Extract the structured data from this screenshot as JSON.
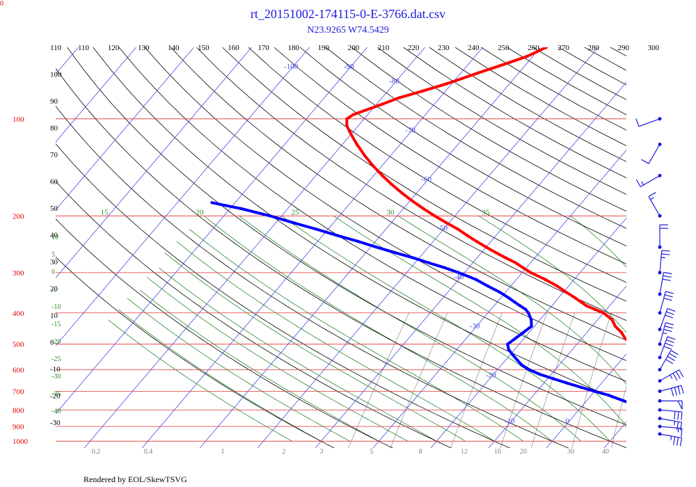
{
  "corner_label": "0",
  "footer": "Rendered by EOL/SkewTSVG",
  "colors": {
    "temperature": "#ff0000",
    "dewpoint": "#0000ff",
    "isobar": "#e03030",
    "isotherm": "#4a4ae6",
    "dry_adiabat": "#000000",
    "moist_adiabat": "#2a8a2a",
    "mixing_ratio": "#9a9a9a",
    "wind_barb": "#1a1adb"
  },
  "chart_data": {
    "type": "skew-t",
    "title": "rt_20151002-174115-0-E-3766.dat.csv",
    "subtitle": "N23.9265 W74.5429",
    "pressure_levels": [
      100,
      200,
      300,
      400,
      500,
      600,
      700,
      800,
      900,
      1000
    ],
    "isotherm_labels": [
      -100,
      -90,
      -80,
      -70,
      -60,
      -50,
      -40,
      -30,
      -20,
      -10,
      0,
      10,
      20,
      30,
      40
    ],
    "theta_top_labels": [
      110,
      120,
      130,
      140,
      150,
      160,
      170,
      180,
      190,
      200,
      210,
      220,
      230,
      240,
      250,
      260,
      270,
      280,
      290,
      300
    ],
    "theta_left_labels": [
      110,
      100,
      90,
      80,
      70,
      60,
      50,
      40,
      30,
      20,
      10,
      0,
      -10,
      -20,
      -30,
      -40
    ],
    "theta_e_labels": [
      15,
      20,
      25,
      30,
      35
    ],
    "moist_left_labels": [
      10,
      5,
      0,
      -5,
      -10,
      -15,
      -20,
      -25,
      -30,
      -35,
      -40
    ],
    "mixing_ratio_labels": [
      "0.2",
      "0.4",
      "1",
      "2",
      "3",
      "5",
      "8",
      "12",
      "16",
      "20",
      "30",
      "40"
    ],
    "series": [
      {
        "name": "temperature",
        "points": [
          [
            940,
            24.5
          ],
          [
            925,
            23.5
          ],
          [
            900,
            22.0
          ],
          [
            870,
            20.0
          ],
          [
            850,
            18.5
          ],
          [
            820,
            17.0
          ],
          [
            800,
            15.5
          ],
          [
            775,
            14.0
          ],
          [
            750,
            12.5
          ],
          [
            720,
            11.0
          ],
          [
            700,
            9.5
          ],
          [
            680,
            8.5
          ],
          [
            660,
            7.8
          ],
          [
            640,
            7.0
          ],
          [
            620,
            6.0
          ],
          [
            600,
            5.2
          ],
          [
            580,
            4.5
          ],
          [
            560,
            4.0
          ],
          [
            540,
            3.0
          ],
          [
            520,
            1.5
          ],
          [
            500,
            -0.5
          ],
          [
            480,
            -2.5
          ],
          [
            460,
            -4.0
          ],
          [
            440,
            -6.0
          ],
          [
            420,
            -7.5
          ],
          [
            400,
            -10.0
          ],
          [
            390,
            -12.0
          ],
          [
            380,
            -14.0
          ],
          [
            370,
            -15.5
          ],
          [
            360,
            -17.0
          ],
          [
            345,
            -19.5
          ],
          [
            330,
            -22.0
          ],
          [
            315,
            -25.0
          ],
          [
            300,
            -28.5
          ],
          [
            290,
            -30.5
          ],
          [
            280,
            -32.5
          ],
          [
            270,
            -35.0
          ],
          [
            260,
            -37.5
          ],
          [
            250,
            -40.0
          ],
          [
            240,
            -42.5
          ],
          [
            230,
            -45.0
          ],
          [
            220,
            -47.5
          ],
          [
            210,
            -50.5
          ],
          [
            200,
            -53.5
          ],
          [
            190,
            -56.5
          ],
          [
            180,
            -59.5
          ],
          [
            170,
            -62.5
          ],
          [
            160,
            -65.5
          ],
          [
            150,
            -68.5
          ],
          [
            140,
            -71.5
          ],
          [
            130,
            -74.5
          ],
          [
            120,
            -77.5
          ],
          [
            110,
            -80.5
          ],
          [
            105,
            -82.0
          ],
          [
            100,
            -83.0
          ],
          [
            97,
            -82.5
          ],
          [
            94,
            -81.0
          ],
          [
            90,
            -79.0
          ],
          [
            86,
            -77.0
          ],
          [
            82,
            -74.0
          ],
          [
            78,
            -71.0
          ],
          [
            75,
            -69.0
          ],
          [
            72,
            -67.0
          ],
          [
            70,
            -65.5
          ],
          [
            68,
            -64.0
          ],
          [
            66,
            -62.5
          ],
          [
            64,
            -61.0
          ],
          [
            62,
            -60.0
          ],
          [
            60,
            -59.0
          ]
        ]
      },
      {
        "name": "dewpoint",
        "points": [
          [
            940,
            23.0
          ],
          [
            925,
            22.0
          ],
          [
            900,
            20.5
          ],
          [
            870,
            18.5
          ],
          [
            850,
            17.0
          ],
          [
            820,
            14.5
          ],
          [
            800,
            12.5
          ],
          [
            775,
            9.5
          ],
          [
            750,
            6.5
          ],
          [
            720,
            3.0
          ],
          [
            700,
            0.0
          ],
          [
            680,
            -3.0
          ],
          [
            660,
            -6.0
          ],
          [
            640,
            -9.0
          ],
          [
            620,
            -12.0
          ],
          [
            600,
            -14.5
          ],
          [
            580,
            -16.5
          ],
          [
            560,
            -18.0
          ],
          [
            540,
            -19.5
          ],
          [
            520,
            -21.0
          ],
          [
            500,
            -22.0
          ],
          [
            480,
            -21.5
          ],
          [
            460,
            -21.0
          ],
          [
            440,
            -20.5
          ],
          [
            420,
            -21.5
          ],
          [
            400,
            -23.0
          ],
          [
            390,
            -24.0
          ],
          [
            380,
            -25.5
          ],
          [
            370,
            -27.0
          ],
          [
            360,
            -28.5
          ],
          [
            345,
            -31.0
          ],
          [
            330,
            -34.0
          ],
          [
            315,
            -37.0
          ],
          [
            300,
            -41.0
          ],
          [
            290,
            -44.0
          ],
          [
            280,
            -47.5
          ],
          [
            270,
            -51.0
          ],
          [
            260,
            -55.0
          ],
          [
            250,
            -59.0
          ],
          [
            240,
            -63.0
          ],
          [
            230,
            -67.5
          ],
          [
            220,
            -72.0
          ],
          [
            210,
            -77.0
          ],
          [
            200,
            -82.0
          ],
          [
            195,
            -85.0
          ],
          [
            190,
            -88.0
          ],
          [
            186,
            -91.0
          ],
          [
            182,
            -94.0
          ]
        ]
      }
    ],
    "wind_barbs": [
      {
        "pressure": 950,
        "direction": 100,
        "speed_kt": 35
      },
      {
        "pressure": 900,
        "direction": 95,
        "speed_kt": 15
      },
      {
        "pressure": 850,
        "direction": 100,
        "speed_kt": 25
      },
      {
        "pressure": 800,
        "direction": 95,
        "speed_kt": 30
      },
      {
        "pressure": 750,
        "direction": 90,
        "speed_kt": 50
      },
      {
        "pressure": 700,
        "direction": 75,
        "speed_kt": 40
      },
      {
        "pressure": 650,
        "direction": 60,
        "speed_kt": 35
      },
      {
        "pressure": 600,
        "direction": 30,
        "speed_kt": 40
      },
      {
        "pressure": 550,
        "direction": 20,
        "speed_kt": 40
      },
      {
        "pressure": 500,
        "direction": 15,
        "speed_kt": 35
      },
      {
        "pressure": 450,
        "direction": 20,
        "speed_kt": 30
      },
      {
        "pressure": 400,
        "direction": 15,
        "speed_kt": 30
      },
      {
        "pressure": 350,
        "direction": 10,
        "speed_kt": 30
      },
      {
        "pressure": 300,
        "direction": 5,
        "speed_kt": 25
      },
      {
        "pressure": 250,
        "direction": 0,
        "speed_kt": 20
      },
      {
        "pressure": 200,
        "direction": 330,
        "speed_kt": 15
      },
      {
        "pressure": 150,
        "direction": 240,
        "speed_kt": 15
      },
      {
        "pressure": 120,
        "direction": 210,
        "speed_kt": 10
      },
      {
        "pressure": 100,
        "direction": 250,
        "speed_kt": 10
      }
    ]
  }
}
